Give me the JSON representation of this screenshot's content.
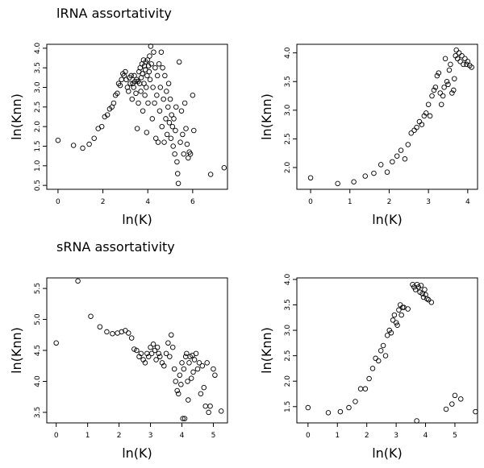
{
  "chart_data": [
    {
      "type": "scatter",
      "title": "lRNA assortativity",
      "x_label": "ln(K)",
      "y_label": "ln(Knn)",
      "xlim": [
        -0.5,
        7.55
      ],
      "ylim": [
        0.4,
        4.1
      ],
      "xticks": [
        0,
        2,
        4,
        6
      ],
      "yticks": [
        0.5,
        {
          "value": 1,
          "label": "1.0"
        },
        1.5,
        {
          "value": 2,
          "label": "2.0"
        },
        2.5,
        {
          "value": 3,
          "label": "3.0"
        },
        3.5,
        {
          "value": 4,
          "label": "4.0"
        }
      ],
      "color": "#000000",
      "x": [
        0,
        0.69,
        1.1,
        1.39,
        1.61,
        1.79,
        1.95,
        2.08,
        2.2,
        2.3,
        2.4,
        2.48,
        2.56,
        2.64,
        2.7,
        2.77,
        2.83,
        2.89,
        2.94,
        3.0,
        3.04,
        3.09,
        3.14,
        3.18,
        3.22,
        3.26,
        3.3,
        3.33,
        3.37,
        3.4,
        3.43,
        3.47,
        3.5,
        3.53,
        3.56,
        3.58,
        3.61,
        3.64,
        3.66,
        3.69,
        3.71,
        3.74,
        3.76,
        3.78,
        3.81,
        3.83,
        3.85,
        3.87,
        3.89,
        3.91,
        3.93,
        3.95,
        3.97,
        3.99,
        4.01,
        4.03,
        4.06,
        4.08,
        4.1,
        4.13,
        4.16,
        4.2,
        4.23,
        4.26,
        4.3,
        4.33,
        4.36,
        4.4,
        4.43,
        4.46,
        4.5,
        4.53,
        4.56,
        4.6,
        4.63,
        4.66,
        4.7,
        4.73,
        4.76,
        4.8,
        4.83,
        4.86,
        4.9,
        4.93,
        4.96,
        5.0,
        5.03,
        5.06,
        5.1,
        5.13,
        5.16,
        5.2,
        5.23,
        5.26,
        5.3,
        5.33,
        5.36,
        5.4,
        5.45,
        5.5,
        5.55,
        5.6,
        5.65,
        5.7,
        5.75,
        5.8,
        5.85,
        5.9,
        6.0,
        6.05,
        6.8,
        7.4
      ],
      "values": [
        1.65,
        1.52,
        1.45,
        1.55,
        1.7,
        1.95,
        2.0,
        2.25,
        2.3,
        2.45,
        2.5,
        2.6,
        2.8,
        2.85,
        3.1,
        3.05,
        3.2,
        3.35,
        3.3,
        3.4,
        3.2,
        3.0,
        2.9,
        3.25,
        3.1,
        3.3,
        2.7,
        3.1,
        3.0,
        3.3,
        3.15,
        2.85,
        3.2,
        1.95,
        3.15,
        2.6,
        3.4,
        3.1,
        3.5,
        2.9,
        3.25,
        3.6,
        3.35,
        2.4,
        3.7,
        3.1,
        3.55,
        2.8,
        3.45,
        3.65,
        3.0,
        1.85,
        3.3,
        3.7,
        2.6,
        3.55,
        3.4,
        3.8,
        3.2,
        4.05,
        3.6,
        2.2,
        3.0,
        3.9,
        2.6,
        3.5,
        1.7,
        2.8,
        3.3,
        1.6,
        3.6,
        2.4,
        3.0,
        3.9,
        2.0,
        3.5,
        2.7,
        1.6,
        3.3,
        2.2,
        2.9,
        1.8,
        2.5,
        3.1,
        2.1,
        2.7,
        1.7,
        2.3,
        2.0,
        1.5,
        2.2,
        1.3,
        1.9,
        2.5,
        1.1,
        0.8,
        0.55,
        3.65,
        1.6,
        2.4,
        1.8,
        1.3,
        2.6,
        1.95,
        1.55,
        1.2,
        1.35,
        1.3,
        2.8,
        1.9,
        0.78,
        0.95
      ]
    },
    {
      "type": "scatter",
      "x_label": "ln(K)",
      "y_label": "ln(Knn)",
      "xlim": [
        -0.35,
        4.25
      ],
      "ylim": [
        1.62,
        4.15
      ],
      "xticks": [
        0,
        1,
        2,
        3,
        4
      ],
      "yticks": [
        {
          "value": 2,
          "label": "2.0"
        },
        2.5,
        {
          "value": 3,
          "label": "3.0"
        },
        3.5,
        {
          "value": 4,
          "label": "4.0"
        }
      ],
      "color": "#000000",
      "x": [
        0,
        0.69,
        1.1,
        1.39,
        1.61,
        1.79,
        1.95,
        2.08,
        2.2,
        2.3,
        2.4,
        2.48,
        2.56,
        2.64,
        2.7,
        2.77,
        2.83,
        2.89,
        2.94,
        3.0,
        3.04,
        3.09,
        3.14,
        3.18,
        3.22,
        3.26,
        3.3,
        3.33,
        3.37,
        3.4,
        3.43,
        3.47,
        3.5,
        3.53,
        3.56,
        3.6,
        3.64,
        3.66,
        3.69,
        3.71,
        3.74,
        3.78,
        3.81,
        3.85,
        3.89,
        3.93,
        3.97,
        4.0,
        4.05,
        4.1
      ],
      "values": [
        1.82,
        1.72,
        1.75,
        1.85,
        1.9,
        2.05,
        1.92,
        2.1,
        2.2,
        2.3,
        2.15,
        2.4,
        2.6,
        2.65,
        2.7,
        2.8,
        2.75,
        2.9,
        2.95,
        3.1,
        2.9,
        3.25,
        3.35,
        3.4,
        3.6,
        3.65,
        3.3,
        3.1,
        3.25,
        3.4,
        3.9,
        3.5,
        3.45,
        3.7,
        3.8,
        3.3,
        3.35,
        3.55,
        3.95,
        4.05,
        3.9,
        4.0,
        3.85,
        3.95,
        3.8,
        3.9,
        3.8,
        3.85,
        3.78,
        3.75
      ]
    },
    {
      "type": "scatter",
      "title": "sRNA assortativity",
      "x_label": "ln(K)",
      "y_label": "ln(Knn)",
      "xlim": [
        -0.3,
        5.45
      ],
      "ylim": [
        3.33,
        5.67
      ],
      "xticks": [
        0,
        1,
        2,
        3,
        4,
        5
      ],
      "yticks": [
        3.5,
        {
          "value": 4,
          "label": "4.0"
        },
        4.5,
        {
          "value": 5,
          "label": "5.0"
        },
        5.5
      ],
      "color": "#000000",
      "x": [
        0,
        0.69,
        1.1,
        1.39,
        1.61,
        1.79,
        1.95,
        2.08,
        2.2,
        2.3,
        2.4,
        2.48,
        2.56,
        2.64,
        2.7,
        2.77,
        2.83,
        2.89,
        2.94,
        3.0,
        3.04,
        3.09,
        3.14,
        3.18,
        3.22,
        3.26,
        3.3,
        3.37,
        3.43,
        3.5,
        3.56,
        3.61,
        3.66,
        3.71,
        3.76,
        3.8,
        3.85,
        3.89,
        3.93,
        3.97,
        4.0,
        4.03,
        4.06,
        4.09,
        4.12,
        4.15,
        4.18,
        4.2,
        4.23,
        4.26,
        4.3,
        4.33,
        4.36,
        4.4,
        4.45,
        4.5,
        4.55,
        4.6,
        4.65,
        4.7,
        4.75,
        4.8,
        4.85,
        4.9,
        5.0,
        5.05,
        5.25
      ],
      "values": [
        4.62,
        5.62,
        5.05,
        4.88,
        4.8,
        4.77,
        4.78,
        4.8,
        4.82,
        4.78,
        4.7,
        4.52,
        4.5,
        4.4,
        4.45,
        4.35,
        4.3,
        4.45,
        4.4,
        4.55,
        4.45,
        4.6,
        4.5,
        4.35,
        4.55,
        4.45,
        4.4,
        4.3,
        4.25,
        4.45,
        4.62,
        4.4,
        4.75,
        4.55,
        4.2,
        4.0,
        3.85,
        3.8,
        4.1,
        3.95,
        4.3,
        3.4,
        4.2,
        3.4,
        4.4,
        4.45,
        4.0,
        3.7,
        4.3,
        4.4,
        4.05,
        4.42,
        4.15,
        4.35,
        4.45,
        4.2,
        4.3,
        3.8,
        4.25,
        3.9,
        3.6,
        4.3,
        3.5,
        3.6,
        4.2,
        4.1,
        3.52
      ]
    },
    {
      "type": "scatter",
      "x_label": "ln(K)",
      "y_label": "ln(Knn)",
      "xlim": [
        -0.38,
        5.77
      ],
      "ylim": [
        1.18,
        4.03
      ],
      "xticks": [
        0,
        1,
        2,
        3,
        4,
        5
      ],
      "yticks": [
        1.5,
        {
          "value": 2,
          "label": "2.0"
        },
        2.5,
        {
          "value": 3,
          "label": "3.0"
        },
        3.5,
        {
          "value": 4,
          "label": "4.0"
        }
      ],
      "color": "#000000",
      "x": [
        0,
        0.69,
        1.1,
        1.39,
        1.61,
        1.79,
        1.95,
        2.08,
        2.2,
        2.3,
        2.4,
        2.48,
        2.56,
        2.64,
        2.7,
        2.77,
        2.83,
        2.89,
        2.94,
        3.0,
        3.04,
        3.09,
        3.14,
        3.18,
        3.22,
        3.26,
        3.4,
        3.56,
        3.61,
        3.66,
        3.7,
        3.71,
        3.76,
        3.81,
        3.85,
        3.89,
        3.93,
        3.97,
        4.0,
        4.05,
        4.1,
        4.2,
        4.7,
        4.9,
        5.0,
        5.2,
        5.7
      ],
      "values": [
        1.48,
        1.38,
        1.4,
        1.48,
        1.6,
        1.85,
        1.85,
        2.05,
        2.25,
        2.45,
        2.4,
        2.6,
        2.7,
        2.5,
        2.9,
        3.0,
        2.95,
        3.2,
        3.3,
        3.15,
        3.1,
        3.4,
        3.5,
        3.3,
        3.45,
        3.45,
        3.42,
        3.9,
        3.85,
        3.8,
        1.22,
        3.9,
        3.85,
        3.75,
        3.88,
        3.72,
        3.65,
        3.8,
        3.7,
        3.62,
        3.6,
        3.55,
        1.45,
        1.55,
        1.72,
        1.65,
        1.4
      ]
    }
  ]
}
